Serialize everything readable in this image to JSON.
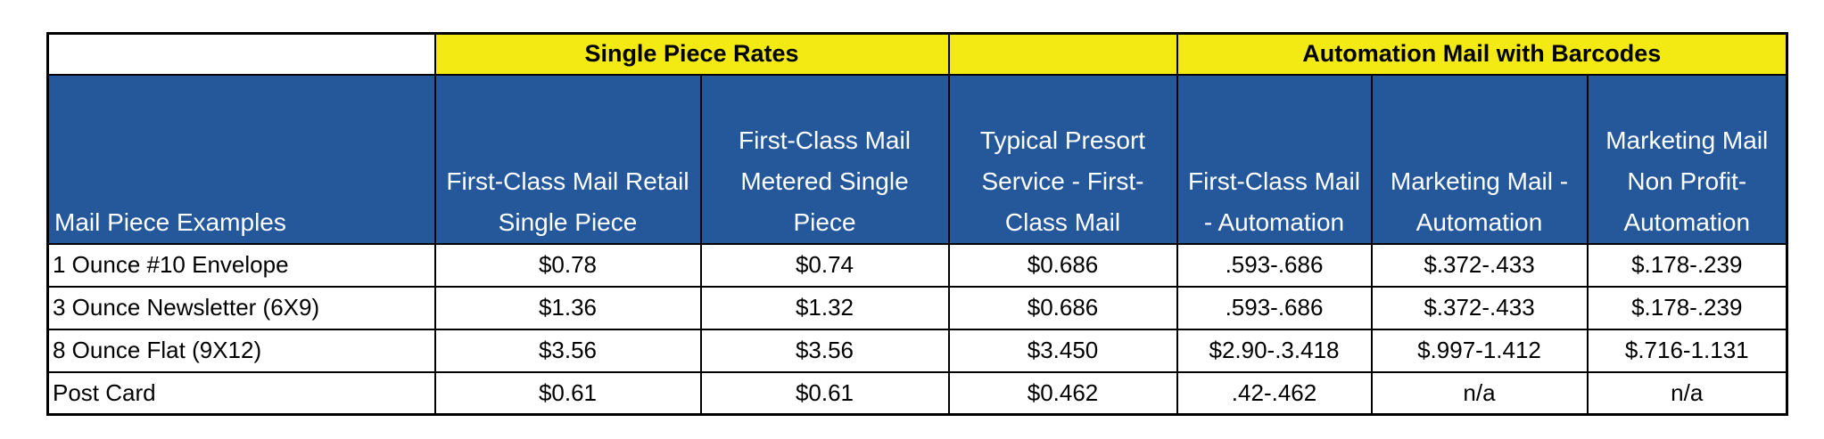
{
  "group_headers": {
    "blank_left": "",
    "single_piece": "Single Piece Rates",
    "blank_middle": "",
    "automation": "Automation Mail with Barcodes"
  },
  "columns": [
    "Mail Piece Examples",
    "First-Class Mail Retail Single Piece",
    "First-Class Mail Metered Single Piece",
    "Typical Presort Service - First-Class Mail",
    "First-Class Mail - Automation",
    "Marketing Mail - Automation",
    "Marketing Mail Non Profit-Automation"
  ],
  "rows": [
    [
      "1 Ounce #10 Envelope",
      "$0.78",
      "$0.74",
      "$0.686",
      ".593-.686",
      "$.372-.433",
      "$.178-.239"
    ],
    [
      "3 Ounce Newsletter (6X9)",
      "$1.36",
      "$1.32",
      "$0.686",
      ".593-.686",
      "$.372-.433",
      "$.178-.239"
    ],
    [
      "8 Ounce Flat (9X12)",
      "$3.56",
      "$3.56",
      "$3.450",
      "$2.90-.3.418",
      "$.997-1.412",
      "$.716-1.131"
    ],
    [
      "Post Card",
      "$0.61",
      "$0.61",
      "$0.462",
      ".42-.462",
      "n/a",
      "n/a"
    ]
  ],
  "colors": {
    "header_blue": "#24589b",
    "header_yellow": "#f2ea12"
  }
}
